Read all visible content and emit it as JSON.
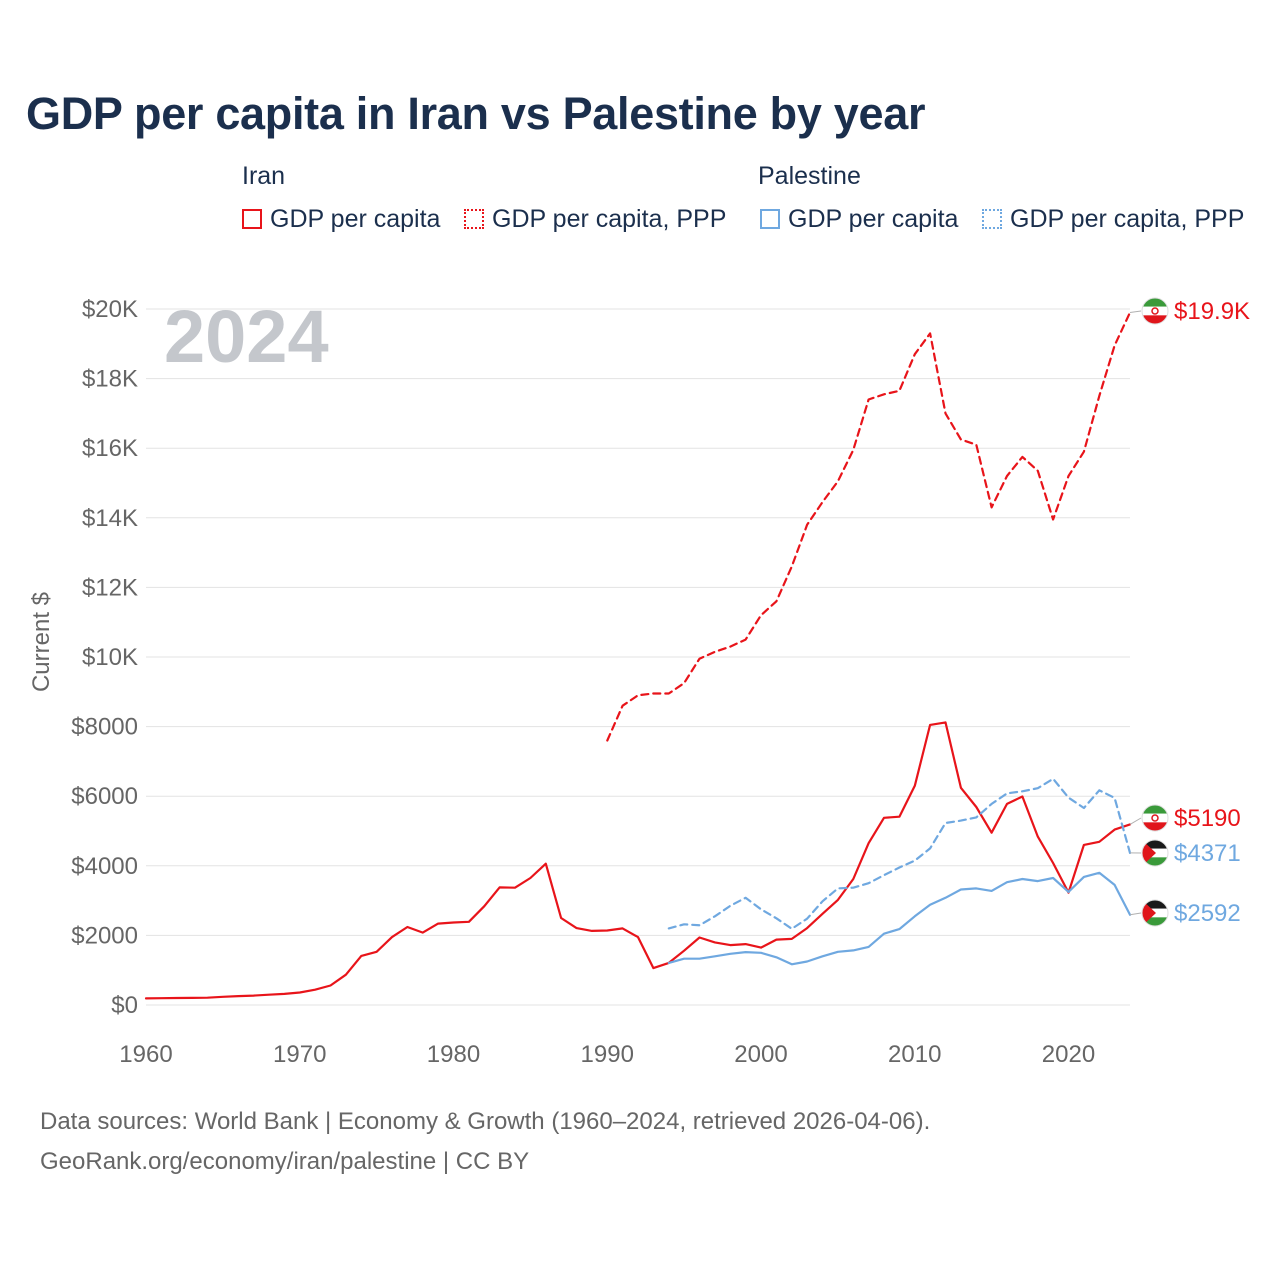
{
  "title": "GDP per capita in Iran vs Palestine by year",
  "year_watermark": "2024",
  "ylabel": "Current $",
  "source_line1": "Data sources: World Bank | Economy & Growth (1960–2024, retrieved 2026-04-06).",
  "source_line2": "GeoRank.org/economy/iran/palestine | CC BY",
  "colors": {
    "iran": "#e8141a",
    "palestine": "#6fa8e0",
    "text": "#1b2f4d",
    "grid": "#e3e3e3"
  },
  "legend": {
    "iran": {
      "title": "Iran",
      "gdp": "GDP per capita",
      "ppp": "GDP per capita, PPP"
    },
    "palestine": {
      "title": "Palestine",
      "gdp": "GDP per capita",
      "ppp": "GDP per capita, PPP"
    }
  },
  "end_labels": {
    "iran_ppp": "$19.9K",
    "iran_gdp": "$5190",
    "palestine_ppp": "$4371",
    "palestine_gdp": "$2592"
  },
  "chart_data": {
    "type": "line",
    "xlim": [
      1960,
      2024
    ],
    "ylim": [
      0,
      20000
    ],
    "xticks": [
      1960,
      1970,
      1980,
      1990,
      2000,
      2010,
      2020
    ],
    "xtick_labels": [
      "1960",
      "1970",
      "1980",
      "1990",
      "2000",
      "2010",
      "2020"
    ],
    "yticks": [
      0,
      2000,
      4000,
      6000,
      8000,
      10000,
      12000,
      14000,
      16000,
      18000,
      20000
    ],
    "ytick_labels": [
      "$0",
      "$2000",
      "$4000",
      "$6000",
      "$8000",
      "$10K",
      "$12K",
      "$14K",
      "$16K",
      "$18K",
      "$20K"
    ],
    "series": [
      {
        "name": "Iran GDP per capita",
        "country": "iran",
        "style": "solid",
        "x": [
          1960,
          1961,
          1962,
          1963,
          1964,
          1965,
          1966,
          1967,
          1968,
          1969,
          1970,
          1971,
          1972,
          1973,
          1974,
          1975,
          1976,
          1977,
          1978,
          1979,
          1980,
          1981,
          1982,
          1983,
          1984,
          1985,
          1986,
          1987,
          1988,
          1989,
          1990,
          1991,
          1992,
          1993,
          1994,
          1995,
          1996,
          1997,
          1998,
          1999,
          2000,
          2001,
          2002,
          2003,
          2004,
          2005,
          2006,
          2007,
          2008,
          2009,
          2010,
          2011,
          2012,
          2013,
          2014,
          2015,
          2016,
          2017,
          2018,
          2019,
          2020,
          2021,
          2022,
          2023,
          2024
        ],
        "values": [
          190,
          195,
          200,
          205,
          210,
          235,
          255,
          270,
          295,
          320,
          360,
          440,
          560,
          870,
          1410,
          1530,
          1950,
          2240,
          2080,
          2340,
          2370,
          2390,
          2840,
          3380,
          3370,
          3650,
          4060,
          2500,
          2210,
          2130,
          2140,
          2200,
          1950,
          1060,
          1210,
          1560,
          1940,
          1800,
          1720,
          1750,
          1650,
          1880,
          1900,
          2210,
          2620,
          3020,
          3620,
          4650,
          5380,
          5410,
          6300,
          8050,
          8120,
          6240,
          5690,
          4950,
          5780,
          5990,
          4840,
          4080,
          3230,
          4600,
          4690,
          5040,
          5190
        ]
      },
      {
        "name": "Iran GDP per capita, PPP",
        "country": "iran",
        "style": "dashed",
        "x": [
          1990,
          1991,
          1992,
          1993,
          1994,
          1995,
          1996,
          1997,
          1998,
          1999,
          2000,
          2001,
          2002,
          2003,
          2004,
          2005,
          2006,
          2007,
          2008,
          2009,
          2010,
          2011,
          2012,
          2013,
          2014,
          2015,
          2016,
          2017,
          2018,
          2019,
          2020,
          2021,
          2022,
          2023,
          2024
        ],
        "values": [
          7600,
          8600,
          8900,
          8950,
          8950,
          9250,
          9950,
          10150,
          10300,
          10500,
          11200,
          11600,
          12600,
          13800,
          14450,
          15050,
          15950,
          17400,
          17550,
          17650,
          18700,
          19300,
          17000,
          16250,
          16100,
          14300,
          15200,
          15750,
          15350,
          13950,
          15200,
          15900,
          17500,
          18950,
          19900
        ]
      },
      {
        "name": "Palestine GDP per capita",
        "country": "palestine",
        "style": "solid",
        "x": [
          1994,
          1995,
          1996,
          1997,
          1998,
          1999,
          2000,
          2001,
          2002,
          2003,
          2004,
          2005,
          2006,
          2007,
          2008,
          2009,
          2010,
          2011,
          2012,
          2013,
          2014,
          2015,
          2016,
          2017,
          2018,
          2019,
          2020,
          2021,
          2022,
          2023,
          2024
        ],
        "values": [
          1210,
          1330,
          1330,
          1400,
          1470,
          1520,
          1500,
          1370,
          1170,
          1250,
          1400,
          1530,
          1570,
          1670,
          2050,
          2180,
          2550,
          2880,
          3080,
          3320,
          3350,
          3280,
          3530,
          3620,
          3560,
          3650,
          3250,
          3680,
          3800,
          3450,
          2592
        ]
      },
      {
        "name": "Palestine GDP per capita, PPP",
        "country": "palestine",
        "style": "dashed",
        "x": [
          1994,
          1995,
          1996,
          1997,
          1998,
          1999,
          2000,
          2001,
          2002,
          2003,
          2004,
          2005,
          2006,
          2007,
          2008,
          2009,
          2010,
          2011,
          2012,
          2013,
          2014,
          2015,
          2016,
          2017,
          2018,
          2019,
          2020,
          2021,
          2022,
          2023,
          2024
        ],
        "values": [
          2200,
          2320,
          2290,
          2550,
          2850,
          3080,
          2750,
          2490,
          2190,
          2480,
          2980,
          3350,
          3370,
          3500,
          3730,
          3950,
          4150,
          4500,
          5230,
          5300,
          5390,
          5780,
          6080,
          6140,
          6230,
          6500,
          5960,
          5660,
          6170,
          5950,
          4371
        ]
      }
    ]
  }
}
